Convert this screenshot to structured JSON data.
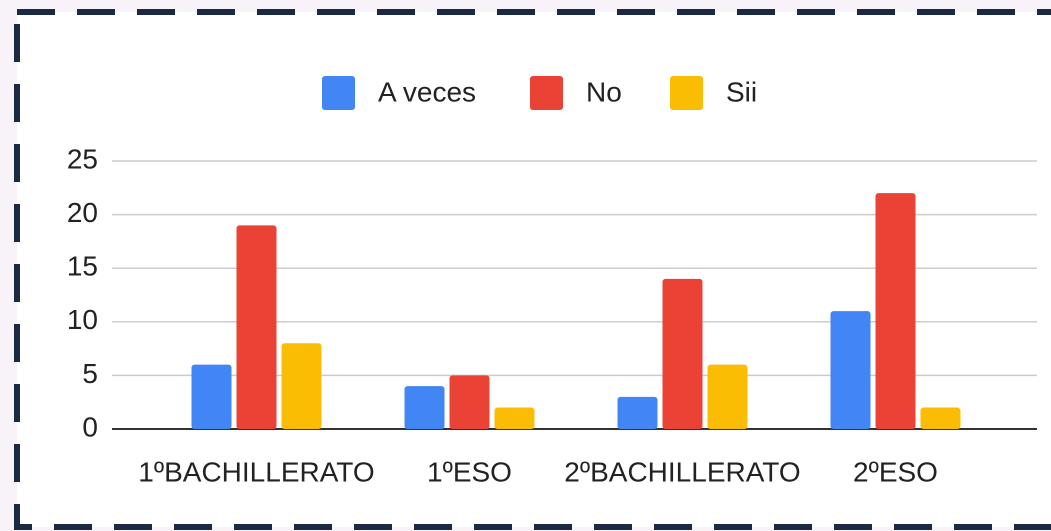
{
  "chart_data": {
    "type": "bar",
    "categories": [
      "1ºBACHILLERATO",
      "1ºESO",
      "2ºBACHILLERATO",
      "2ºESO"
    ],
    "series": [
      {
        "name": "A veces",
        "color": "#4285f4",
        "values": [
          6,
          4,
          3,
          11
        ]
      },
      {
        "name": "No",
        "color": "#ea4335",
        "values": [
          19,
          5,
          14,
          22
        ]
      },
      {
        "name": "Sii",
        "color": "#fbbc04",
        "values": [
          8,
          2,
          6,
          2
        ]
      }
    ],
    "ylim": [
      0,
      25
    ],
    "yticks": [
      0,
      5,
      10,
      15,
      20,
      25
    ],
    "grid": true,
    "legend": "top"
  }
}
